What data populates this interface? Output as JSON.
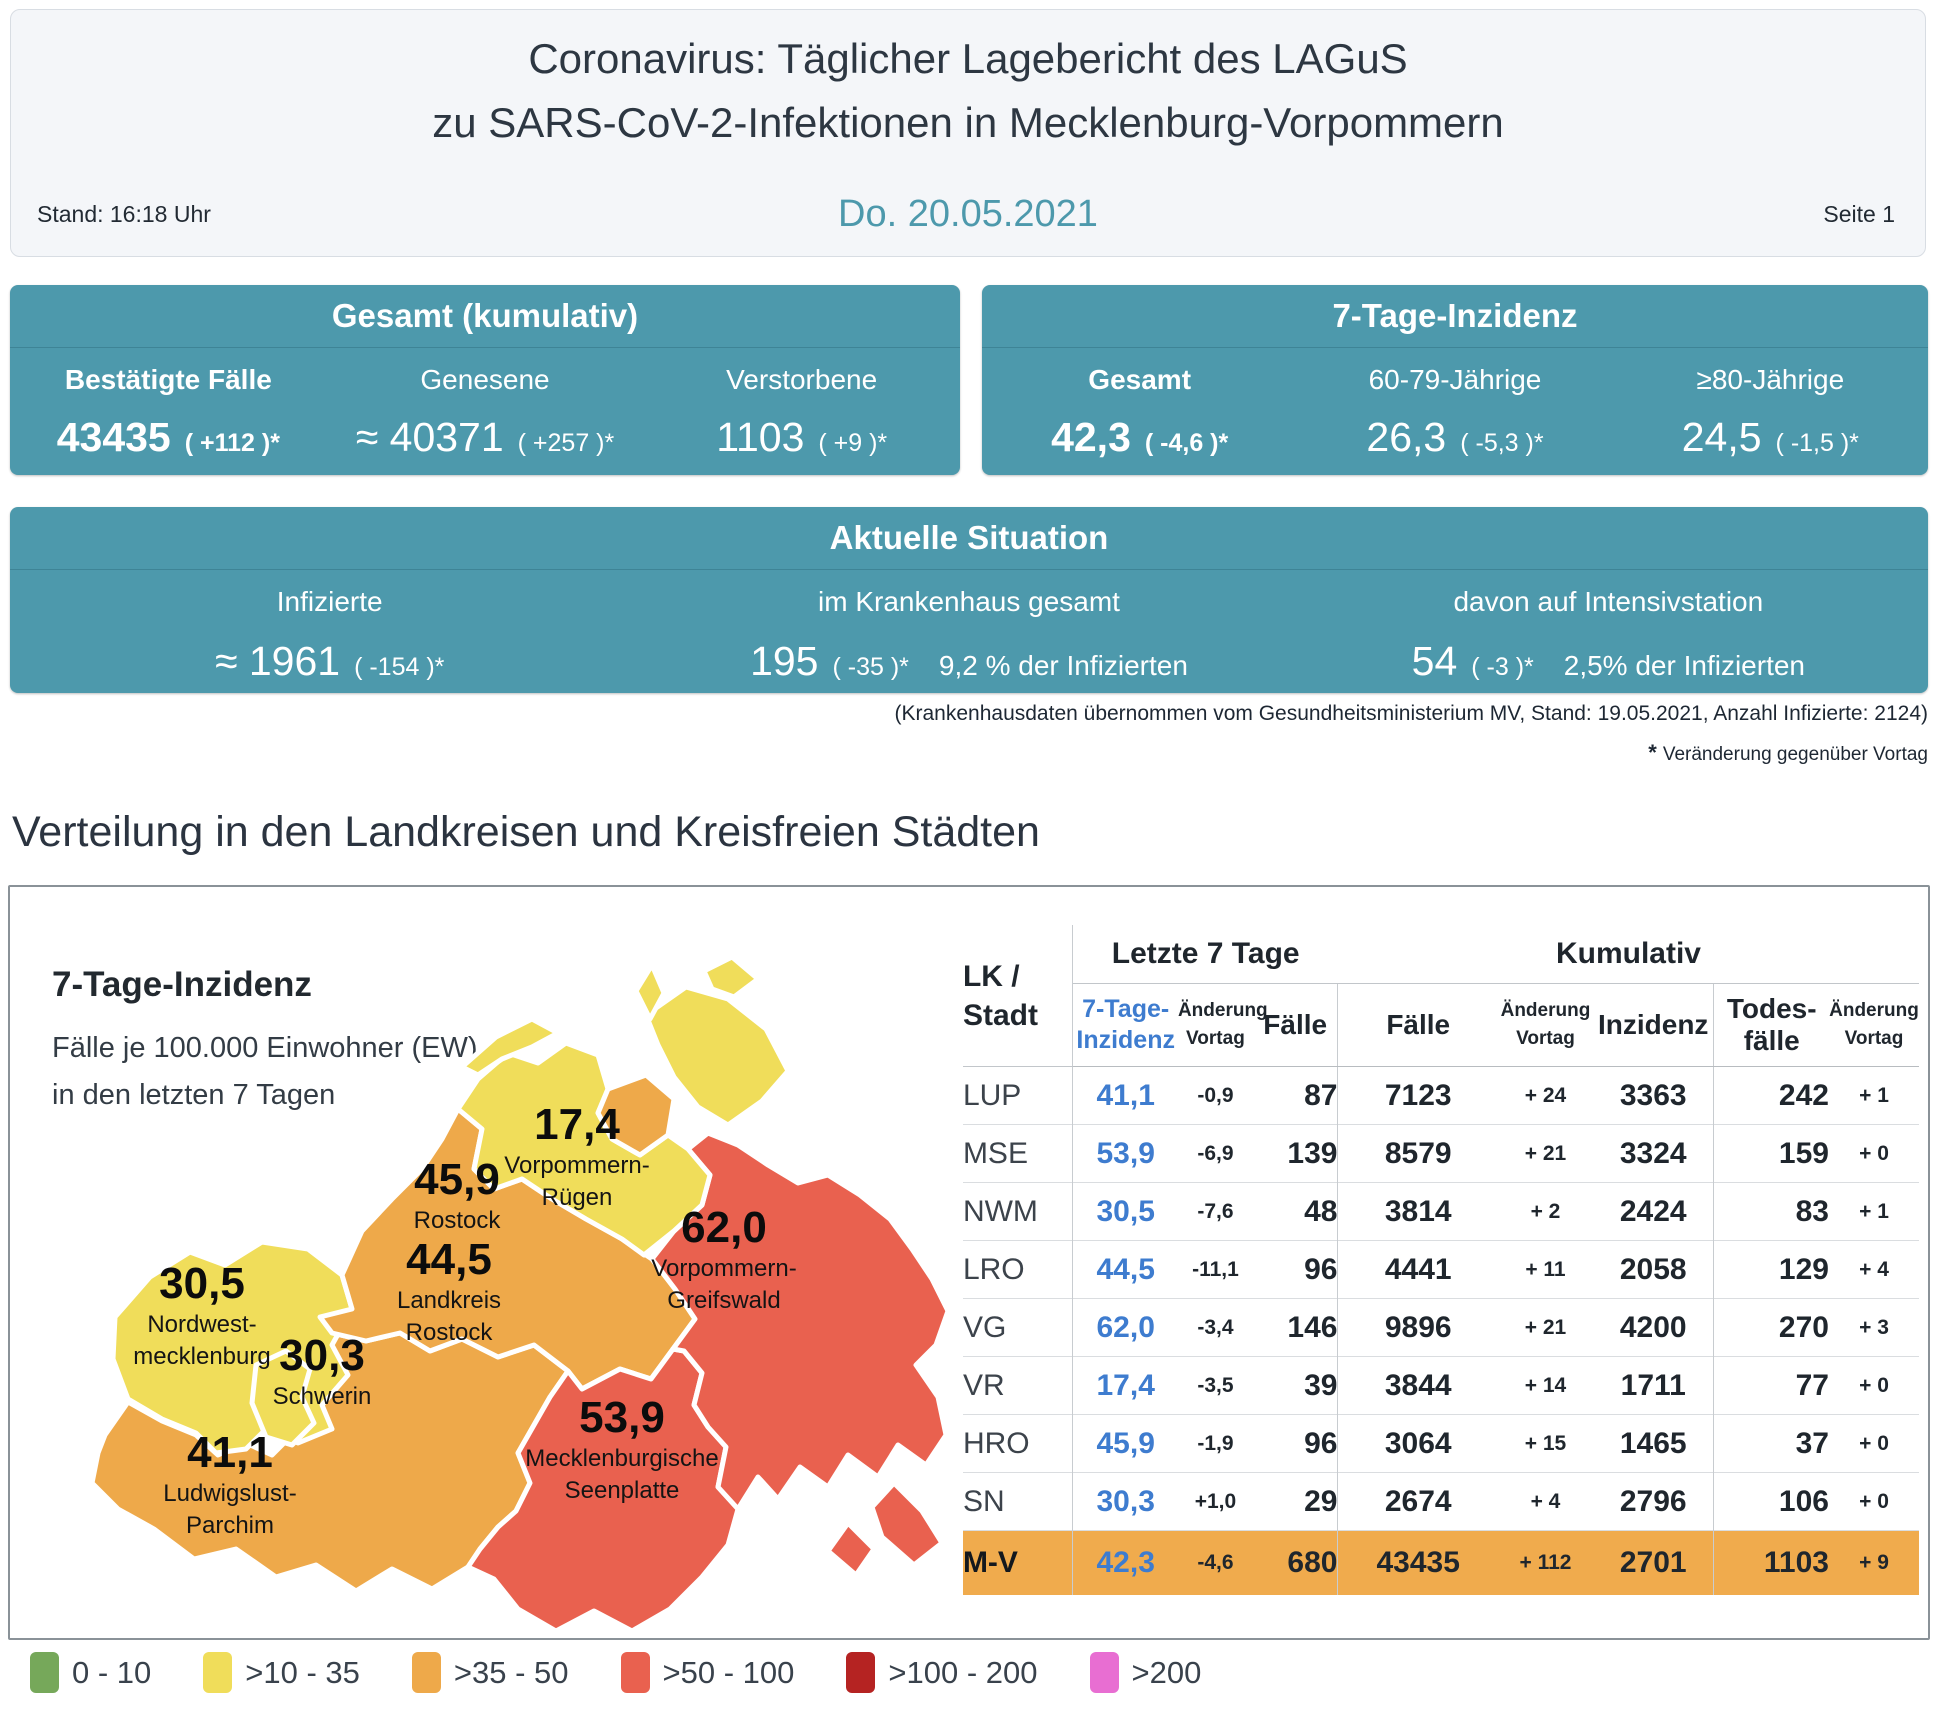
{
  "header": {
    "title_line1": "Coronavirus: Täglicher Lagebericht des LAGuS",
    "title_line2": "zu SARS-CoV-2-Infektionen in Mecklenburg-Vorpommern",
    "date": "Do. 20.05.2021",
    "stand": "Stand: 16:18 Uhr",
    "page": "Seite 1"
  },
  "colors": {
    "teal": "#4d99ac",
    "table_blue": "#3e7ccf",
    "total_row_orange": "#f0ab4d"
  },
  "cards": {
    "gesamt": {
      "title": "Gesamt (kumulativ)",
      "cols": [
        {
          "label": "Bestätigte Fälle",
          "value": "43435",
          "change": "( +112 )*"
        },
        {
          "label": "Genesene",
          "value": "≈ 40371",
          "change": "( +257 )*"
        },
        {
          "label": "Verstorbene",
          "value": "1103",
          "change": "( +9 )*"
        }
      ]
    },
    "inzidenz": {
      "title": "7-Tage-Inzidenz",
      "cols": [
        {
          "label": "Gesamt",
          "value": "42,3",
          "change": "( -4,6 )*"
        },
        {
          "label": "60-79-Jährige",
          "value": "26,3",
          "change": "( -5,3 )*"
        },
        {
          "label": "≥80-Jährige",
          "value": "24,5",
          "change": "( -1,5 )*"
        }
      ]
    },
    "situation": {
      "title": "Aktuelle Situation",
      "cols": [
        {
          "label": "Infizierte",
          "value": "≈ 1961",
          "change": "( -154 )*",
          "extra": ""
        },
        {
          "label": "im Krankenhaus gesamt",
          "value": "195",
          "change": "( -35 )*",
          "extra": "9,2 % der Infizierten"
        },
        {
          "label": "davon auf Intensivstation",
          "value": "54",
          "change": "( -3 )*",
          "extra": "2,5% der Infizierten"
        }
      ]
    }
  },
  "footnotes": {
    "hospital": "(Krankenhausdaten übernommen vom Gesundheitsministerium MV, Stand: 19.05.2021, Anzahl Infizierte: 2124)",
    "star": "*",
    "change_note": "Veränderung gegenüber Vortag"
  },
  "section_title": "Verteilung in den Landkreisen und Kreisfreien Städten",
  "map": {
    "title": "7-Tage-Inzidenz",
    "subtitle": "Fälle je 100.000 Einwohner (EW)\nin den letzten 7 Tagen",
    "regions": [
      {
        "id": "vorpommern-ruegen",
        "value": "17,4",
        "name": "Vorpommern-\nRügen",
        "color": "#f0dd5a"
      },
      {
        "id": "rostock",
        "value": "45,9",
        "name": "Rostock",
        "color": "#eea94a"
      },
      {
        "id": "landkreis-rostock",
        "value": "44,5",
        "name": "Landkreis\nRostock",
        "color": "#eea94a"
      },
      {
        "id": "vorpommern-greifswald",
        "value": "62,0",
        "name": "Vorpommern-\nGreifswald",
        "color": "#e9614f"
      },
      {
        "id": "nordwestmecklenburg",
        "value": "30,5",
        "name": "Nordwest-\nmecklenburg",
        "color": "#f0dd5a"
      },
      {
        "id": "schwerin",
        "value": "30,3",
        "name": "Schwerin",
        "color": "#f0dd5a"
      },
      {
        "id": "ludwigslust-parchim",
        "value": "41,1",
        "name": "Ludwigslust-\nParchim",
        "color": "#eea94a"
      },
      {
        "id": "mecklenburgische-seenplatte",
        "value": "53,9",
        "name": "Mecklenburgische\nSeenplatte",
        "color": "#e9614f"
      }
    ]
  },
  "table": {
    "col_lk": "LK /\nStadt",
    "group_last7": "Letzte 7 Tage",
    "group_cumulative": "Kumulativ",
    "sub_inzidenz7": "7-Tage-\nInzidenz",
    "sub_aenderung": "Änderung\nVortag",
    "sub_faelle7": "Fälle",
    "sub_faelle_kum": "Fälle",
    "sub_aenderung_kum": "Änderung\nVortag",
    "sub_inzidenz_kum": "Inzidenz",
    "sub_todesfaelle": "Todes-\nfälle",
    "sub_aenderung_tote": "Änderung\nVortag",
    "rows": [
      {
        "lk": "LUP",
        "inz7": "41,1",
        "chg7": "-0,9",
        "faelle7": "87",
        "faelle": "7123",
        "chg": "+ 24",
        "inz": "3363",
        "tote": "242",
        "chg_tote": "+ 1",
        "total": false
      },
      {
        "lk": "MSE",
        "inz7": "53,9",
        "chg7": "-6,9",
        "faelle7": "139",
        "faelle": "8579",
        "chg": "+ 21",
        "inz": "3324",
        "tote": "159",
        "chg_tote": "+ 0",
        "total": false
      },
      {
        "lk": "NWM",
        "inz7": "30,5",
        "chg7": "-7,6",
        "faelle7": "48",
        "faelle": "3814",
        "chg": "+ 2",
        "inz": "2424",
        "tote": "83",
        "chg_tote": "+ 1",
        "total": false
      },
      {
        "lk": "LRO",
        "inz7": "44,5",
        "chg7": "-11,1",
        "faelle7": "96",
        "faelle": "4441",
        "chg": "+ 11",
        "inz": "2058",
        "tote": "129",
        "chg_tote": "+ 4",
        "total": false
      },
      {
        "lk": "VG",
        "inz7": "62,0",
        "chg7": "-3,4",
        "faelle7": "146",
        "faelle": "9896",
        "chg": "+ 21",
        "inz": "4200",
        "tote": "270",
        "chg_tote": "+ 3",
        "total": false
      },
      {
        "lk": "VR",
        "inz7": "17,4",
        "chg7": "-3,5",
        "faelle7": "39",
        "faelle": "3844",
        "chg": "+ 14",
        "inz": "1711",
        "tote": "77",
        "chg_tote": "+ 0",
        "total": false
      },
      {
        "lk": "HRO",
        "inz7": "45,9",
        "chg7": "-1,9",
        "faelle7": "96",
        "faelle": "3064",
        "chg": "+ 15",
        "inz": "1465",
        "tote": "37",
        "chg_tote": "+ 0",
        "total": false
      },
      {
        "lk": "SN",
        "inz7": "30,3",
        "chg7": "+1,0",
        "faelle7": "29",
        "faelle": "2674",
        "chg": "+ 4",
        "inz": "2796",
        "tote": "106",
        "chg_tote": "+ 0",
        "total": false
      },
      {
        "lk": "M-V",
        "inz7": "42,3",
        "chg7": "-4,6",
        "faelle7": "680",
        "faelle": "43435",
        "chg": "+ 112",
        "inz": "2701",
        "tote": "1103",
        "chg_tote": "+ 9",
        "total": true
      }
    ]
  },
  "legend": {
    "items": [
      {
        "label": "0 - 10",
        "color": "#76a85a"
      },
      {
        "label": ">10 - 35",
        "color": "#f0dd5a"
      },
      {
        "label": ">35 - 50",
        "color": "#eea94a"
      },
      {
        "label": ">50 - 100",
        "color": "#e9614f"
      },
      {
        "label": ">100 - 200",
        "color": "#b52322"
      },
      {
        "label": ">200",
        "color": "#e86ed2"
      }
    ]
  }
}
